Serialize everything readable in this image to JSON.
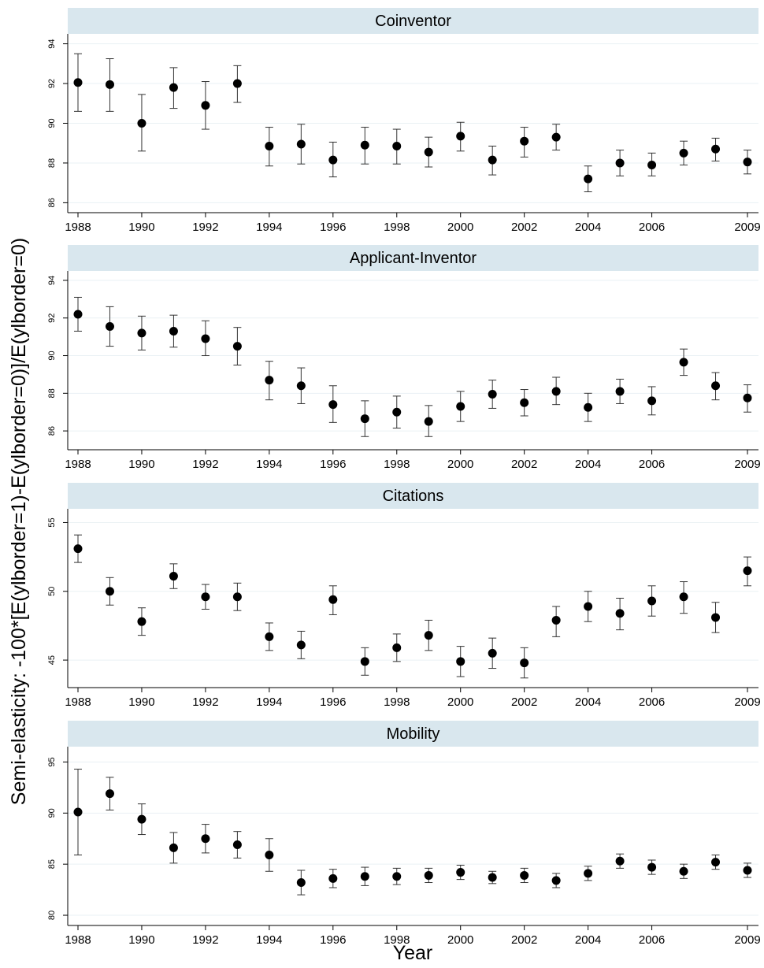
{
  "ylabel": "Semi-elasticity: -100*[E(ylborder=1)-E(ylborder=0)]/E(ylborder=0)",
  "xlabel": "Year",
  "colors": {
    "strip": "#d9e7ee",
    "marker": "#000000",
    "grid": "#eaf1f4",
    "axis": "#000000"
  },
  "chart_data": [
    {
      "type": "scatter",
      "title": "Coinventor",
      "x": [
        1988,
        1989,
        1990,
        1991,
        1992,
        1993,
        1994,
        1995,
        1996,
        1997,
        1998,
        1999,
        2000,
        2001,
        2002,
        2003,
        2004,
        2005,
        2006,
        2007,
        2008,
        2009
      ],
      "y": [
        92.05,
        91.95,
        90.0,
        91.8,
        90.9,
        92.0,
        88.85,
        88.95,
        88.15,
        88.9,
        88.85,
        88.55,
        89.35,
        88.15,
        89.1,
        89.3,
        87.2,
        88.0,
        87.9,
        88.5,
        88.7,
        88.05
      ],
      "lo": [
        90.6,
        90.6,
        88.6,
        90.75,
        89.7,
        91.05,
        87.85,
        87.95,
        87.3,
        87.95,
        87.95,
        87.8,
        88.6,
        87.4,
        88.3,
        88.65,
        86.55,
        87.35,
        87.35,
        87.9,
        88.1,
        87.45
      ],
      "hi": [
        93.5,
        93.25,
        91.45,
        92.8,
        92.1,
        92.9,
        89.8,
        89.95,
        89.05,
        89.8,
        89.7,
        89.3,
        90.05,
        88.85,
        89.8,
        89.95,
        87.85,
        88.65,
        88.5,
        89.1,
        89.25,
        88.65
      ],
      "ylim": [
        85.5,
        94.5
      ],
      "yticks": [
        86,
        88,
        90,
        92,
        94
      ],
      "xticks": [
        "1988",
        "1990",
        "1992",
        "1994",
        "1996",
        "1998",
        "2000",
        "2002",
        "2004",
        "2006",
        "2009"
      ],
      "grid": true
    },
    {
      "type": "scatter",
      "title": "Applicant-Inventor",
      "x": [
        1988,
        1989,
        1990,
        1991,
        1992,
        1993,
        1994,
        1995,
        1996,
        1997,
        1998,
        1999,
        2000,
        2001,
        2002,
        2003,
        2004,
        2005,
        2006,
        2007,
        2008,
        2009
      ],
      "y": [
        92.2,
        91.55,
        91.2,
        91.3,
        90.9,
        90.5,
        88.7,
        88.4,
        87.4,
        86.65,
        87.0,
        86.5,
        87.3,
        87.95,
        87.5,
        88.1,
        87.25,
        88.1,
        87.6,
        89.65,
        88.4,
        87.75
      ],
      "lo": [
        91.3,
        90.5,
        90.3,
        90.45,
        90.0,
        89.5,
        87.65,
        87.45,
        86.45,
        85.7,
        86.15,
        85.7,
        86.5,
        87.2,
        86.8,
        87.4,
        86.5,
        87.45,
        86.85,
        88.95,
        87.65,
        87.0
      ],
      "hi": [
        93.1,
        92.6,
        92.1,
        92.15,
        91.85,
        91.5,
        89.7,
        89.35,
        88.4,
        87.6,
        87.85,
        87.35,
        88.1,
        88.7,
        88.2,
        88.85,
        88.0,
        88.75,
        88.35,
        90.35,
        89.1,
        88.45
      ],
      "ylim": [
        85.0,
        94.5
      ],
      "yticks": [
        86,
        88,
        90,
        92,
        94
      ],
      "xticks": [
        "1988",
        "1990",
        "1992",
        "1994",
        "1996",
        "1998",
        "2000",
        "2002",
        "2004",
        "2006",
        "2009"
      ],
      "grid": true
    },
    {
      "type": "scatter",
      "title": "Citations",
      "x": [
        1988,
        1989,
        1990,
        1991,
        1992,
        1993,
        1994,
        1995,
        1996,
        1997,
        1998,
        1999,
        2000,
        2001,
        2002,
        2003,
        2004,
        2005,
        2006,
        2007,
        2008,
        2009
      ],
      "y": [
        53.1,
        50.0,
        47.8,
        51.1,
        49.6,
        49.6,
        46.7,
        46.1,
        49.4,
        44.9,
        45.9,
        46.8,
        44.9,
        45.5,
        44.8,
        47.9,
        48.9,
        48.4,
        49.3,
        49.6,
        48.1,
        51.5
      ],
      "lo": [
        52.1,
        49.0,
        46.8,
        50.2,
        48.7,
        48.6,
        45.7,
        45.1,
        48.3,
        43.9,
        44.9,
        45.7,
        43.8,
        44.4,
        43.7,
        46.7,
        47.8,
        47.2,
        48.2,
        48.4,
        47.0,
        50.4
      ],
      "hi": [
        54.1,
        51.0,
        48.8,
        52.0,
        50.5,
        50.6,
        47.7,
        47.1,
        50.4,
        45.9,
        46.9,
        47.9,
        46.0,
        46.6,
        45.9,
        48.9,
        50.0,
        49.5,
        50.4,
        50.7,
        49.2,
        52.5
      ],
      "ylim": [
        43.0,
        56.0
      ],
      "yticks": [
        45,
        50,
        55
      ],
      "xticks": [
        "1988",
        "1990",
        "1992",
        "1994",
        "1996",
        "1998",
        "2000",
        "2002",
        "2004",
        "2006",
        "2009"
      ],
      "grid": true
    },
    {
      "type": "scatter",
      "title": "Mobility",
      "x": [
        1988,
        1989,
        1990,
        1991,
        1992,
        1993,
        1994,
        1995,
        1996,
        1997,
        1998,
        1999,
        2000,
        2001,
        2002,
        2003,
        2004,
        2005,
        2006,
        2007,
        2008,
        2009
      ],
      "y": [
        90.1,
        91.9,
        89.4,
        86.6,
        87.5,
        86.9,
        85.9,
        83.2,
        83.6,
        83.8,
        83.8,
        83.9,
        84.2,
        83.7,
        83.9,
        83.4,
        84.1,
        85.3,
        84.7,
        84.3,
        85.2,
        84.4
      ],
      "lo": [
        85.9,
        90.3,
        87.9,
        85.1,
        86.1,
        85.6,
        84.3,
        82.0,
        82.7,
        82.9,
        83.0,
        83.2,
        83.5,
        83.1,
        83.2,
        82.7,
        83.4,
        84.6,
        84.0,
        83.6,
        84.5,
        83.7
      ],
      "hi": [
        94.3,
        93.5,
        90.9,
        88.1,
        88.9,
        88.2,
        87.5,
        84.4,
        84.5,
        84.7,
        84.6,
        84.6,
        84.9,
        84.3,
        84.6,
        84.1,
        84.8,
        86.0,
        85.4,
        85.0,
        85.9,
        85.1
      ],
      "ylim": [
        79.0,
        96.5
      ],
      "yticks": [
        80,
        85,
        90,
        95
      ],
      "xticks": [
        "1988",
        "1990",
        "1992",
        "1994",
        "1996",
        "1998",
        "2000",
        "2002",
        "2004",
        "2006",
        "2009"
      ],
      "grid": true
    }
  ]
}
